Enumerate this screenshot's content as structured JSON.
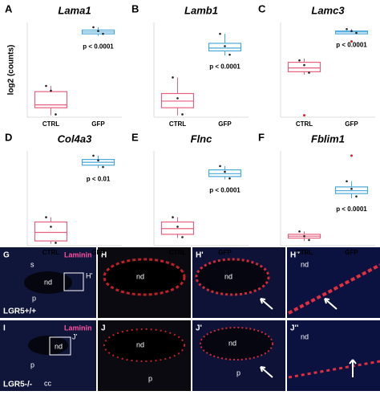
{
  "chart_data": [
    {
      "type": "box",
      "letter": "A",
      "title": "Lama1",
      "ylabel": "log2 (counts)",
      "categories": [
        "CTRL",
        "GFP"
      ],
      "ylim": [
        0,
        1
      ],
      "annotation": "p < 0.0001",
      "boxes": [
        {
          "color": "#e8607f",
          "min": 0.02,
          "q1": 0.1,
          "median": 0.13,
          "q3": 0.27,
          "max": 0.33,
          "points": [
            0.33,
            0.28,
            0.03
          ]
        },
        {
          "color": "#4aa8d8",
          "min": 0.86,
          "q1": 0.88,
          "median": 0.9,
          "q3": 0.92,
          "max": 0.95,
          "points": [
            0.95,
            0.91,
            0.88
          ]
        }
      ]
    },
    {
      "type": "box",
      "letter": "B",
      "title": "Lamb1",
      "categories": [
        "CTRL",
        "GFP"
      ],
      "ylim": [
        0,
        1
      ],
      "annotation": "p < 0.0001",
      "boxes": [
        {
          "color": "#e8607f",
          "min": 0.02,
          "q1": 0.1,
          "median": 0.17,
          "q3": 0.25,
          "max": 0.42,
          "points": [
            0.42,
            0.2,
            0.03
          ]
        },
        {
          "color": "#4aa8d8",
          "min": 0.65,
          "q1": 0.7,
          "median": 0.73,
          "q3": 0.78,
          "max": 0.88,
          "points": [
            0.88,
            0.75,
            0.66
          ]
        }
      ]
    },
    {
      "type": "box",
      "letter": "C",
      "title": "Lamc3",
      "categories": [
        "CTRL",
        "GFP"
      ],
      "ylim": [
        0,
        1
      ],
      "annotation": "p < 0.0001",
      "boxes": [
        {
          "color": "#e8607f",
          "min": 0.45,
          "q1": 0.48,
          "median": 0.52,
          "q3": 0.58,
          "max": 0.62,
          "points": [
            0.6,
            0.55,
            0.47
          ],
          "outliers": [
            0.02
          ]
        },
        {
          "color": "#4aa8d8",
          "min": 0.88,
          "q1": 0.88,
          "median": 0.9,
          "q3": 0.91,
          "max": 0.93,
          "points": [
            0.93,
            0.91,
            0.89
          ],
          "outliers": [
            0.8
          ]
        }
      ]
    },
    {
      "type": "box",
      "letter": "D",
      "title": "Col4a3",
      "categories": [
        "CTRL",
        "GFP"
      ],
      "ylim": [
        0,
        1
      ],
      "annotation": "p < 0.01",
      "boxes": [
        {
          "color": "#e8607f",
          "min": 0.02,
          "q1": 0.05,
          "median": 0.14,
          "q3": 0.25,
          "max": 0.3,
          "points": [
            0.3,
            0.2,
            0.03
          ]
        },
        {
          "color": "#4aa8d8",
          "min": 0.82,
          "q1": 0.85,
          "median": 0.88,
          "q3": 0.91,
          "max": 0.95,
          "points": [
            0.95,
            0.9,
            0.83
          ]
        }
      ]
    },
    {
      "type": "box",
      "letter": "E",
      "title": "Flnc",
      "categories": [
        "CTRL",
        "GFP"
      ],
      "ylim": [
        0,
        1
      ],
      "annotation": "p < 0.0001",
      "boxes": [
        {
          "color": "#e8607f",
          "min": 0.08,
          "q1": 0.12,
          "median": 0.18,
          "q3": 0.25,
          "max": 0.3,
          "points": [
            0.3,
            0.2,
            0.09
          ]
        },
        {
          "color": "#4aa8d8",
          "min": 0.7,
          "q1": 0.73,
          "median": 0.76,
          "q3": 0.8,
          "max": 0.84,
          "points": [
            0.84,
            0.78,
            0.71
          ]
        }
      ]
    },
    {
      "type": "box",
      "letter": "F",
      "title": "Fblim1",
      "categories": [
        "CTRL",
        "GFP"
      ],
      "ylim": [
        0,
        1
      ],
      "annotation": "p < 0.0001",
      "boxes": [
        {
          "color": "#e8607f",
          "min": 0.05,
          "q1": 0.08,
          "median": 0.1,
          "q3": 0.12,
          "max": 0.15,
          "points": [
            0.15,
            0.1,
            0.06
          ]
        },
        {
          "color": "#4aa8d8",
          "min": 0.5,
          "q1": 0.55,
          "median": 0.58,
          "q3": 0.62,
          "max": 0.68,
          "points": [
            0.68,
            0.6,
            0.52
          ],
          "outliers": [
            0.95
          ]
        }
      ]
    }
  ],
  "micrographs": {
    "row1": {
      "genotype": "LGR5+/+",
      "stain": "Laminin",
      "letters": [
        "G",
        "H",
        "H'",
        "H''"
      ],
      "inset": "H'",
      "labels": [
        "s",
        "nd",
        "p"
      ]
    },
    "row2": {
      "genotype": "LGR5-/-",
      "stain": "Laminin",
      "letters": [
        "I",
        "J",
        "J'",
        "J''"
      ],
      "inset": "J'",
      "labels": [
        "nd",
        "p",
        "cc"
      ]
    },
    "nd": "nd",
    "p": "p"
  }
}
